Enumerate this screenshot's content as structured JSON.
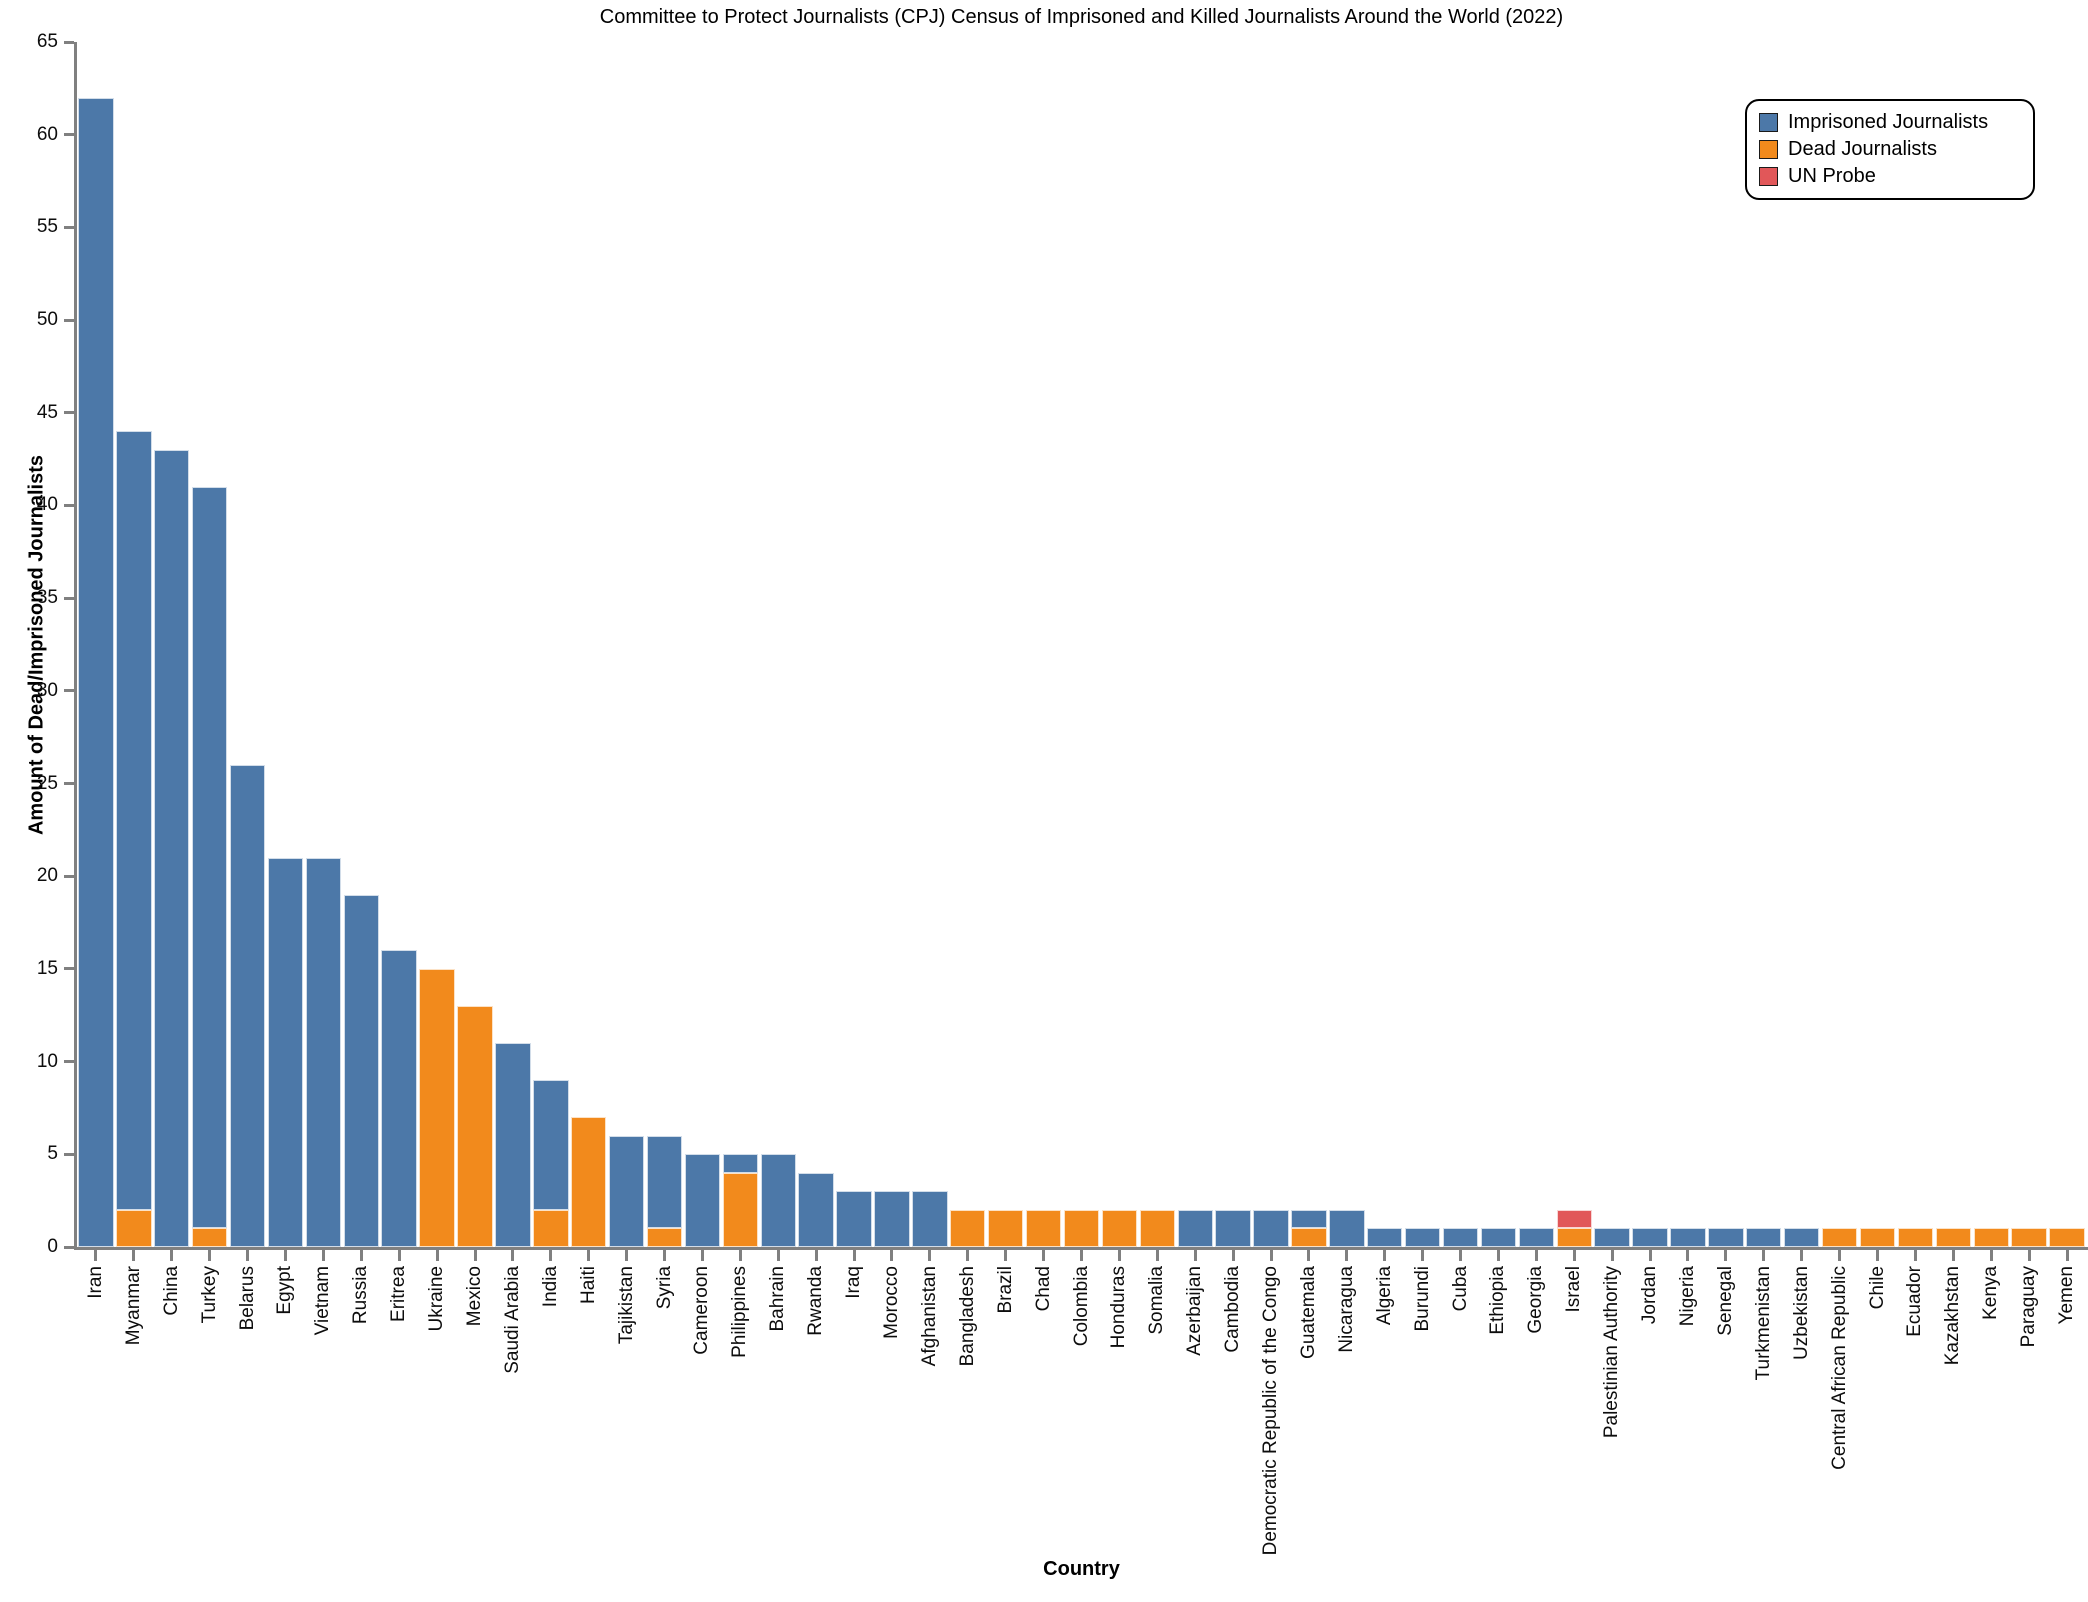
{
  "title": "Committee to Protect Journalists (CPJ) Census of Imprisoned and Killed Journalists Around the World (2022)",
  "chart_data": {
    "type": "bar",
    "stacked": true,
    "title": "Committee to Protect Journalists (CPJ) Census of Imprisoned and Killed Journalists Around the World (2022)",
    "xlabel": "Country",
    "ylabel": "Amount of Dead/Imprisoned Journalists",
    "ylim": [
      0,
      65
    ],
    "ytick_step": 5,
    "grid": false,
    "legend_position": "upper right",
    "categories": [
      "Iran",
      "Myanmar",
      "China",
      "Turkey",
      "Belarus",
      "Egypt",
      "Vietnam",
      "Russia",
      "Eritrea",
      "Ukraine",
      "Mexico",
      "Saudi Arabia",
      "India",
      "Haiti",
      "Tajikistan",
      "Syria",
      "Cameroon",
      "Philippines",
      "Bahrain",
      "Rwanda",
      "Iraq",
      "Morocco",
      "Afghanistan",
      "Bangladesh",
      "Brazil",
      "Chad",
      "Colombia",
      "Honduras",
      "Somalia",
      "Azerbaijan",
      "Cambodia",
      "Democratic Republic of the Congo",
      "Guatemala",
      "Nicaragua",
      "Algeria",
      "Burundi",
      "Cuba",
      "Ethiopia",
      "Georgia",
      "Israel",
      "Palestinian Authority",
      "Jordan",
      "Nigeria",
      "Senegal",
      "Turkmenistan",
      "Uzbekistan",
      "Central African Republic",
      "Chile",
      "Ecuador",
      "Kazakhstan",
      "Kenya",
      "Paraguay",
      "Yemen"
    ],
    "series": [
      {
        "key": "imprisoned",
        "name": "Imprisoned Journalists",
        "color": "#4C78A8",
        "values": [
          62,
          42,
          43,
          40,
          26,
          21,
          21,
          19,
          16,
          0,
          0,
          11,
          7,
          0,
          6,
          5,
          5,
          1,
          5,
          4,
          3,
          3,
          3,
          0,
          0,
          0,
          0,
          0,
          0,
          2,
          2,
          2,
          1,
          2,
          1,
          1,
          1,
          1,
          1,
          0,
          1,
          1,
          1,
          1,
          1,
          1,
          0,
          0,
          0,
          0,
          0,
          0,
          0
        ]
      },
      {
        "key": "dead",
        "name": "Dead Journalists",
        "color": "#F28A1C",
        "values": [
          0,
          2,
          0,
          1,
          0,
          0,
          0,
          0,
          0,
          15,
          13,
          0,
          2,
          7,
          0,
          1,
          0,
          4,
          0,
          0,
          0,
          0,
          0,
          2,
          2,
          2,
          2,
          2,
          2,
          0,
          0,
          0,
          1,
          0,
          0,
          0,
          0,
          0,
          0,
          1,
          0,
          0,
          0,
          0,
          0,
          0,
          1,
          1,
          1,
          1,
          1,
          1,
          1
        ]
      },
      {
        "key": "probe",
        "name": "UN Probe",
        "color": "#E15759",
        "values": [
          0,
          0,
          0,
          0,
          0,
          0,
          0,
          0,
          0,
          0,
          0,
          0,
          0,
          0,
          0,
          0,
          0,
          0,
          0,
          0,
          0,
          0,
          0,
          0,
          0,
          0,
          0,
          0,
          0,
          0,
          0,
          0,
          0,
          0,
          0,
          0,
          0,
          0,
          0,
          1,
          0,
          0,
          0,
          0,
          0,
          0,
          0,
          0,
          0,
          0,
          0,
          0,
          0
        ]
      }
    ],
    "stack_order_bottom_to_top": [
      "dead",
      "imprisoned",
      "probe"
    ]
  }
}
